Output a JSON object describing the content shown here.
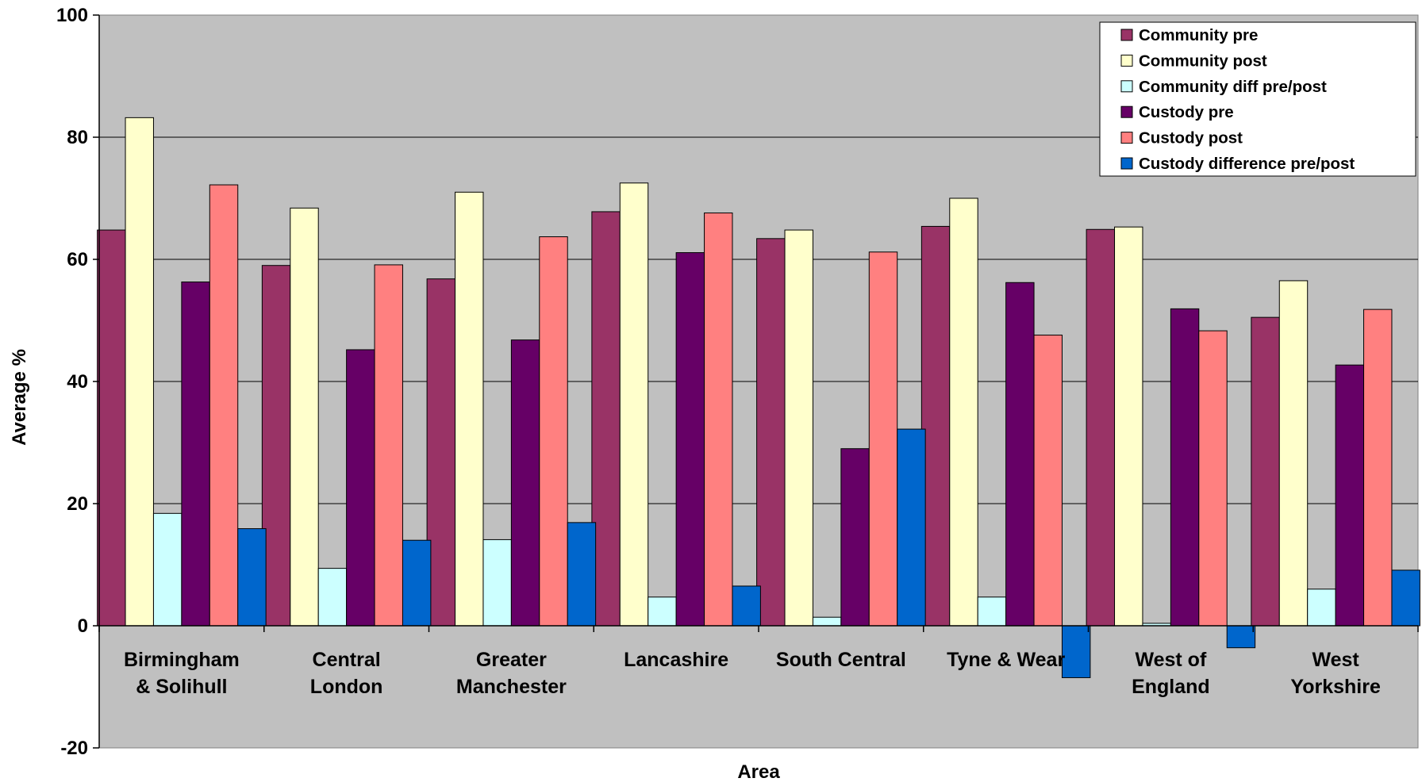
{
  "chart_data": {
    "type": "bar",
    "xlabel": "Area",
    "ylabel": "Average %",
    "ylim": [
      -20,
      100
    ],
    "yticks": [
      -20,
      0,
      20,
      40,
      60,
      80,
      100
    ],
    "grid": true,
    "legend_position": "top-right",
    "plot_background": "#c0c0c0",
    "categories": [
      [
        "Birmingham",
        "& Solihull"
      ],
      [
        "Central",
        "London"
      ],
      [
        "Greater",
        "Manchester"
      ],
      [
        "Lancashire"
      ],
      [
        "South Central"
      ],
      [
        "Tyne & Wear"
      ],
      [
        "West of",
        "England"
      ],
      [
        "West",
        "Yorkshire"
      ]
    ],
    "series": [
      {
        "name": "Community pre",
        "color": "#993366",
        "values": [
          64.8,
          59.0,
          56.8,
          67.8,
          63.4,
          65.4,
          64.9,
          50.5
        ]
      },
      {
        "name": "Community post",
        "color": "#ffffcc",
        "values": [
          83.2,
          68.4,
          71.0,
          72.5,
          64.8,
          70.0,
          65.3,
          56.5
        ]
      },
      {
        "name": "Community diff pre/post",
        "color": "#ccffff",
        "values": [
          18.4,
          9.4,
          14.1,
          4.7,
          1.4,
          4.7,
          0.4,
          6.0
        ]
      },
      {
        "name": "Custody pre",
        "color": "#660066",
        "values": [
          56.3,
          45.2,
          46.8,
          61.1,
          29.0,
          56.2,
          51.9,
          42.7
        ]
      },
      {
        "name": "Custody post",
        "color": "#ff8080",
        "values": [
          72.2,
          59.1,
          63.7,
          67.6,
          61.2,
          47.6,
          48.3,
          51.8
        ]
      },
      {
        "name": "Custody difference pre/post",
        "color": "#0066cc",
        "values": [
          15.9,
          14.0,
          16.9,
          6.5,
          32.2,
          -8.5,
          -3.6,
          9.1
        ]
      }
    ]
  }
}
